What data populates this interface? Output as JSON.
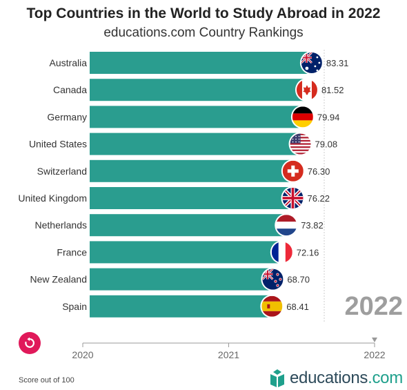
{
  "header": {
    "title": "Top Countries in the World to Study Abroad in 2022",
    "subtitle": "educations.com Country Rankings"
  },
  "chart_data": {
    "type": "bar",
    "orientation": "horizontal",
    "title": "Top Countries in the World to Study Abroad in 2022",
    "subtitle": "educations.com Country Rankings",
    "categories": [
      "Australia",
      "Canada",
      "Germany",
      "United States",
      "Switzerland",
      "United Kingdom",
      "Netherlands",
      "France",
      "New Zealand",
      "Spain"
    ],
    "values": [
      83.31,
      81.52,
      79.94,
      79.08,
      76.3,
      76.22,
      73.82,
      72.16,
      68.7,
      68.41
    ],
    "value_labels": [
      "83.31",
      "81.52",
      "79.94",
      "79.08",
      "76.30",
      "76.22",
      "73.82",
      "72.16",
      "68.70",
      "68.41"
    ],
    "flag_icons": [
      "australia-flag-icon",
      "canada-flag-icon",
      "germany-flag-icon",
      "united-states-flag-icon",
      "switzerland-flag-icon",
      "united-kingdom-flag-icon",
      "netherlands-flag-icon",
      "france-flag-icon",
      "new-zealand-flag-icon",
      "spain-flag-icon"
    ],
    "bar_color": "#2a9d8f",
    "year_label": "2022",
    "timeline": {
      "ticks": [
        "2020",
        "2021",
        "2022"
      ],
      "current": "2022"
    },
    "xlim": [
      0,
      88
    ],
    "note": "Score out of 100"
  },
  "controls": {
    "replay_icon": "replay-icon"
  },
  "footer": {
    "note": "Score out of 100",
    "brand": "educations",
    "brand_suffix": ".com"
  }
}
